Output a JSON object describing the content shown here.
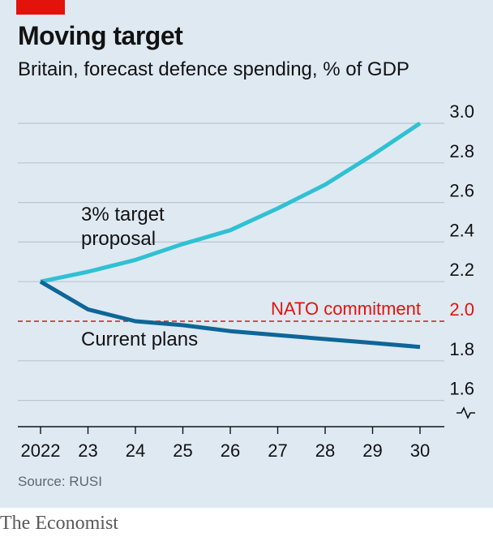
{
  "title": "Moving target",
  "subtitle": "Britain, forecast defence spending, % of GDP",
  "source": "Source: RUSI",
  "brand": "The Economist",
  "colors": {
    "background": "#dfe9f2",
    "accent_red": "#e3120b",
    "target_series": "#2fc1d3",
    "current_series": "#0e6698",
    "nato_line": "#e3120b",
    "grid": "#b7c6d3"
  },
  "chart_data": {
    "type": "line",
    "x": [
      "2022",
      "23",
      "24",
      "25",
      "26",
      "27",
      "28",
      "29",
      "30"
    ],
    "ylim": [
      1.5,
      3.0
    ],
    "y_ticks": [
      "3.0",
      "2.8",
      "2.6",
      "2.4",
      "2.2",
      "2.0",
      "1.8",
      "1.6"
    ],
    "y_axis_break": true,
    "grid": true,
    "series": [
      {
        "name": "3% target proposal",
        "label_lines": [
          "3% target",
          "proposal"
        ],
        "color": "#2fc1d3",
        "values": [
          2.2,
          2.25,
          2.31,
          2.39,
          2.46,
          2.57,
          2.69,
          2.84,
          3.0
        ]
      },
      {
        "name": "Current plans",
        "label_lines": [
          "Current plans"
        ],
        "color": "#0e6698",
        "values": [
          2.2,
          2.06,
          2.0,
          1.98,
          1.95,
          1.93,
          1.91,
          1.89,
          1.87
        ]
      }
    ],
    "reference_lines": [
      {
        "name": "NATO commitment",
        "value": 2.0,
        "color": "#e3120b",
        "style": "dashed"
      }
    ]
  }
}
